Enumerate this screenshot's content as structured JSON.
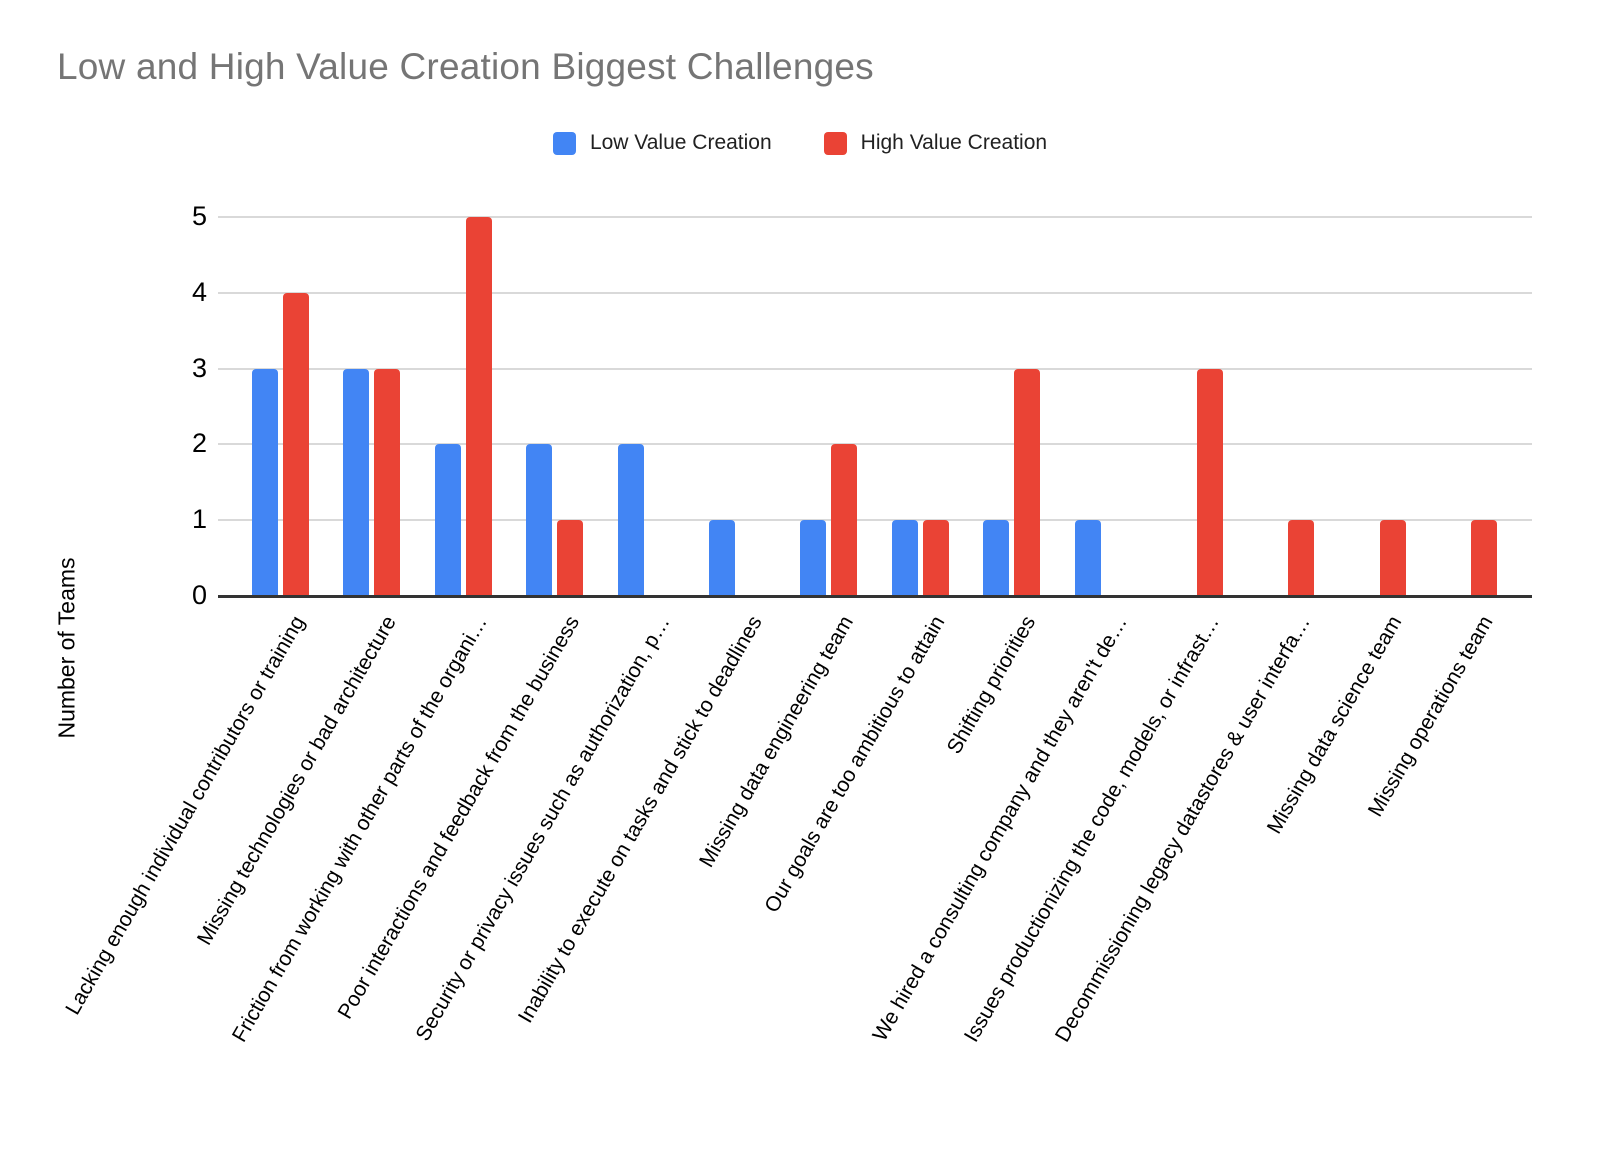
{
  "title": "Low and High Value Creation Biggest Challenges",
  "colors": {
    "title_text": "#757575",
    "axis_text": "#000000",
    "gridline": "#d9d9d9",
    "axis_line": "#333333",
    "background": "#ffffff",
    "series_low": "#4285F4",
    "series_high": "#EA4335"
  },
  "chart_data": {
    "type": "bar",
    "title": "Low and High Value Creation Biggest Challenges",
    "xlabel": "",
    "ylabel": "Number of Teams",
    "ylim": [
      0,
      5
    ],
    "yticks": [
      0,
      1,
      2,
      3,
      4,
      5
    ],
    "grid": true,
    "legend_position": "top",
    "categories": [
      "Lacking enough individual contributors or training",
      "Missing technologies or bad architecture",
      "Friction from working with other parts of the organi…",
      "Poor interactions and feedback from the business",
      "Security or privacy issues such as authorization, p…",
      "Inability to execute on tasks and stick to deadlines",
      "Missing data engineering team",
      "Our goals are too ambitious to attain",
      "Shifting priorities",
      "We hired a consulting company and they aren't de…",
      "Issues productionizing the code, models, or infrast…",
      "Decommissioning legacy datastores & user interfa…",
      "Missing data science team",
      "Missing operations team"
    ],
    "series": [
      {
        "name": "Low Value Creation",
        "color": "#4285F4",
        "values": [
          3,
          3,
          2,
          2,
          2,
          1,
          1,
          1,
          1,
          1,
          0,
          0,
          0,
          0
        ]
      },
      {
        "name": "High Value Creation",
        "color": "#EA4335",
        "values": [
          4,
          3,
          5,
          1,
          0,
          0,
          2,
          1,
          3,
          0,
          3,
          1,
          1,
          1
        ]
      }
    ]
  }
}
